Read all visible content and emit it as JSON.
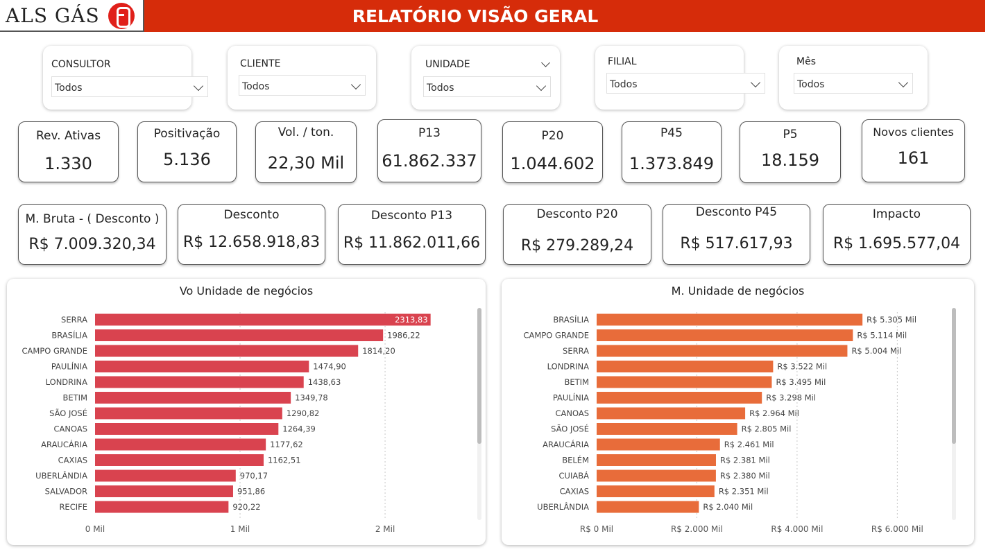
{
  "header": {
    "logo_text": "ALS GÁS",
    "title": "RELATÓRIO VISÃO GERAL"
  },
  "filters": [
    {
      "label": "CONSULTOR",
      "value": "Todos"
    },
    {
      "label": "CLIENTE",
      "value": "Todos"
    },
    {
      "label": "UNIDADE",
      "value": "Todos"
    },
    {
      "label": "FILIAL",
      "value": "Todos"
    },
    {
      "label": "Mês",
      "value": "Todos"
    }
  ],
  "kpis_row1": [
    {
      "label": "Rev. Ativas",
      "value": "1.330"
    },
    {
      "label": "Positivação",
      "value": "5.136"
    },
    {
      "label": "Vol. / ton.",
      "value": "22,30 Mil"
    },
    {
      "label": "P13",
      "value": "61.862.337"
    },
    {
      "label": "P20",
      "value": "1.044.602"
    },
    {
      "label": "P45",
      "value": "1.373.849"
    },
    {
      "label": "P5",
      "value": "18.159"
    },
    {
      "label": "Novos clientes",
      "value": "161"
    }
  ],
  "kpis_row2": [
    {
      "label": "M. Bruta - ( Desconto )",
      "value": "R$ 7.009.320,34"
    },
    {
      "label": "Desconto",
      "value": "R$ 12.658.918,83"
    },
    {
      "label": "Desconto P13",
      "value": "R$ 11.862.011,66"
    },
    {
      "label": "Desconto P20",
      "value": "R$ 279.289,24"
    },
    {
      "label": "Desconto P45",
      "value": "R$ 517.617,93"
    },
    {
      "label": "Impacto",
      "value": "R$ 1.695.577,04"
    }
  ],
  "chart_data": [
    {
      "type": "bar",
      "orientation": "horizontal",
      "title": "Vo Unidade de negócios",
      "color": "#d9434f",
      "categories": [
        "SERRA",
        "BRASÍLIA",
        "CAMPO GRANDE",
        "PAULÍNIA",
        "LONDRINA",
        "BETIM",
        "SÃO JOSÉ",
        "CANOAS",
        "ARAUCÁRIA",
        "CAXIAS",
        "UBERLÂNDIA",
        "SALVADOR",
        "RECIFE"
      ],
      "values": [
        2313.83,
        1986.22,
        1814.2,
        1474.9,
        1438.63,
        1349.78,
        1290.82,
        1264.39,
        1177.62,
        1162.51,
        970.17,
        951.86,
        920.22
      ],
      "value_labels": [
        "2313,83",
        "1986,22",
        "1814,20",
        "1474,90",
        "1438,63",
        "1349,78",
        "1290,82",
        "1264,39",
        "1177,62",
        "1162,51",
        "970,17",
        "951,86",
        "920,22"
      ],
      "xlim": [
        0,
        2300
      ],
      "xticks": [
        0,
        1000,
        2000
      ],
      "xtick_labels": [
        "0 Mil",
        "1 Mil",
        "2 Mil"
      ],
      "grid": true
    },
    {
      "type": "bar",
      "orientation": "horizontal",
      "title": "M. Unidade de negócios",
      "color": "#e86c3a",
      "categories": [
        "BRASÍLIA",
        "CAMPO GRANDE",
        "SERRA",
        "LONDRINA",
        "BETIM",
        "PAULÍNIA",
        "CANOAS",
        "SÃO JOSÉ",
        "ARAUCÁRIA",
        "BELÉM",
        "CUIABÁ",
        "CAXIAS",
        "UBERLÂNDIA"
      ],
      "values": [
        5305,
        5114,
        5004,
        3522,
        3495,
        3298,
        2964,
        2805,
        2461,
        2381,
        2380,
        2351,
        2040
      ],
      "value_labels": [
        "R$ 5.305 Mil",
        "R$ 5.114 Mil",
        "R$ 5.004 Mil",
        "R$ 3.522 Mil",
        "R$ 3.495 Mil",
        "R$ 3.298 Mil",
        "R$ 2.964 Mil",
        "R$ 2.805 Mil",
        "R$ 2.461 Mil",
        "R$ 2.381 Mil",
        "R$ 2.380 Mil",
        "R$ 2.351 Mil",
        "R$ 2.040 Mil"
      ],
      "xlim": [
        0,
        6000
      ],
      "xticks": [
        0,
        2000,
        4000,
        6000
      ],
      "xtick_labels": [
        "R$ 0 Mil",
        "R$ 2.000 Mil",
        "R$ 4.000 Mil",
        "R$ 6.000 Mil"
      ],
      "grid": true
    }
  ]
}
